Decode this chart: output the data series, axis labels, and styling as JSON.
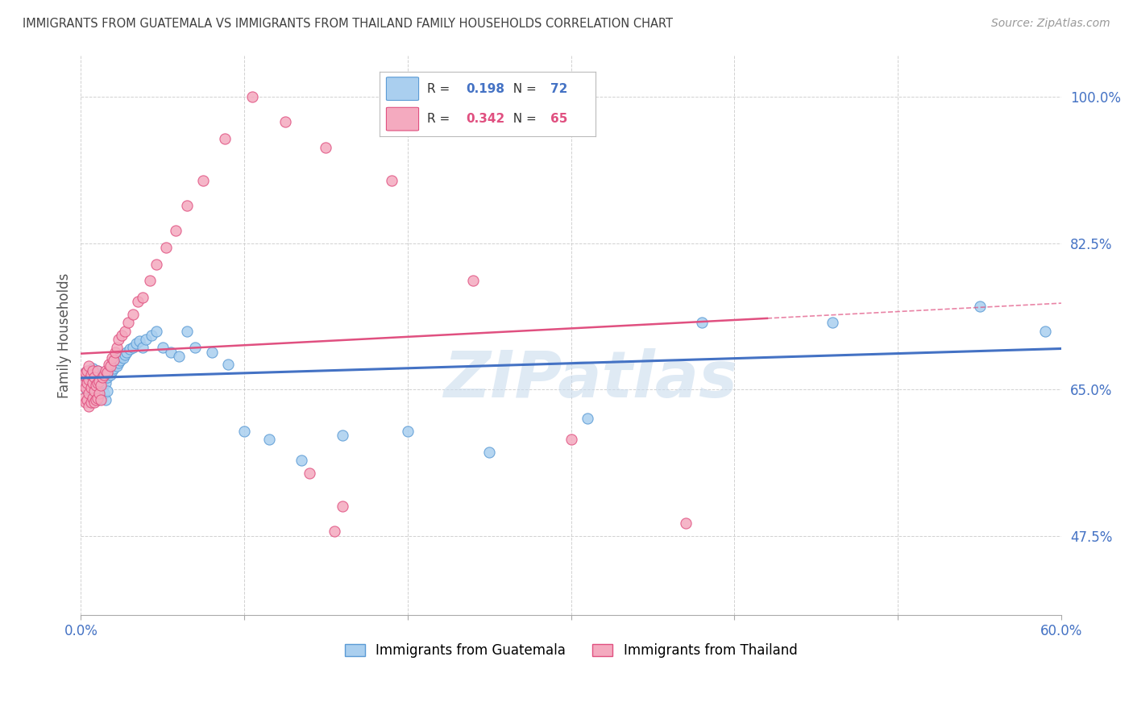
{
  "title": "IMMIGRANTS FROM GUATEMALA VS IMMIGRANTS FROM THAILAND FAMILY HOUSEHOLDS CORRELATION CHART",
  "source": "Source: ZipAtlas.com",
  "ylabel": "Family Households",
  "xlim": [
    0.0,
    0.6
  ],
  "ylim": [
    0.38,
    1.05
  ],
  "y_tick_vals": [
    0.475,
    0.65,
    0.825,
    1.0
  ],
  "y_tick_labels": [
    "47.5%",
    "65.0%",
    "82.5%",
    "100.0%"
  ],
  "x_tick_positions": [
    0.0,
    0.1,
    0.2,
    0.3,
    0.4,
    0.5,
    0.6
  ],
  "x_tick_labels": [
    "0.0%",
    "",
    "",
    "",
    "",
    "",
    "60.0%"
  ],
  "legend_blue_r": "0.198",
  "legend_blue_n": "72",
  "legend_pink_r": "0.342",
  "legend_pink_n": "65",
  "color_blue_fill": "#AACFEF",
  "color_blue_edge": "#5B9BD5",
  "color_pink_fill": "#F4AABF",
  "color_pink_edge": "#E05080",
  "color_blue_line": "#4472C4",
  "color_pink_line": "#E05080",
  "color_blue_text": "#4472C4",
  "color_pink_text": "#E05080",
  "color_title": "#404040",
  "color_grid": "#CCCCCC",
  "watermark": "ZIPatlas",
  "watermark_color": "#CADCEE",
  "background_color": "#FFFFFF",
  "blue_x": [
    0.002,
    0.003,
    0.003,
    0.004,
    0.004,
    0.005,
    0.005,
    0.005,
    0.006,
    0.006,
    0.006,
    0.007,
    0.007,
    0.007,
    0.008,
    0.008,
    0.008,
    0.009,
    0.009,
    0.01,
    0.01,
    0.01,
    0.011,
    0.011,
    0.012,
    0.012,
    0.013,
    0.013,
    0.014,
    0.014,
    0.015,
    0.015,
    0.016,
    0.016,
    0.017,
    0.018,
    0.019,
    0.02,
    0.021,
    0.022,
    0.023,
    0.024,
    0.025,
    0.026,
    0.027,
    0.028,
    0.03,
    0.032,
    0.034,
    0.036,
    0.038,
    0.04,
    0.043,
    0.046,
    0.05,
    0.055,
    0.06,
    0.065,
    0.07,
    0.08,
    0.09,
    0.1,
    0.115,
    0.135,
    0.16,
    0.2,
    0.25,
    0.31,
    0.38,
    0.46,
    0.55,
    0.59
  ],
  "blue_y": [
    0.66,
    0.655,
    0.67,
    0.648,
    0.665,
    0.64,
    0.658,
    0.672,
    0.635,
    0.65,
    0.668,
    0.642,
    0.66,
    0.675,
    0.638,
    0.655,
    0.67,
    0.645,
    0.662,
    0.638,
    0.655,
    0.672,
    0.648,
    0.665,
    0.64,
    0.66,
    0.65,
    0.668,
    0.645,
    0.662,
    0.638,
    0.658,
    0.648,
    0.665,
    0.67,
    0.668,
    0.672,
    0.675,
    0.68,
    0.678,
    0.682,
    0.685,
    0.69,
    0.688,
    0.692,
    0.695,
    0.698,
    0.7,
    0.705,
    0.708,
    0.7,
    0.71,
    0.715,
    0.72,
    0.7,
    0.695,
    0.69,
    0.72,
    0.7,
    0.695,
    0.68,
    0.6,
    0.59,
    0.565,
    0.595,
    0.6,
    0.575,
    0.615,
    0.73,
    0.73,
    0.75,
    0.72
  ],
  "pink_x": [
    0.001,
    0.002,
    0.002,
    0.003,
    0.003,
    0.003,
    0.004,
    0.004,
    0.004,
    0.005,
    0.005,
    0.005,
    0.005,
    0.006,
    0.006,
    0.006,
    0.007,
    0.007,
    0.007,
    0.008,
    0.008,
    0.008,
    0.009,
    0.009,
    0.01,
    0.01,
    0.01,
    0.011,
    0.011,
    0.012,
    0.012,
    0.013,
    0.014,
    0.015,
    0.016,
    0.017,
    0.018,
    0.019,
    0.02,
    0.021,
    0.022,
    0.023,
    0.025,
    0.027,
    0.029,
    0.032,
    0.035,
    0.038,
    0.042,
    0.046,
    0.052,
    0.058,
    0.065,
    0.075,
    0.088,
    0.105,
    0.125,
    0.15,
    0.19,
    0.24,
    0.3,
    0.37,
    0.14,
    0.155,
    0.16
  ],
  "pink_y": [
    0.655,
    0.64,
    0.668,
    0.635,
    0.652,
    0.67,
    0.638,
    0.658,
    0.672,
    0.63,
    0.645,
    0.662,
    0.678,
    0.635,
    0.652,
    0.668,
    0.64,
    0.658,
    0.672,
    0.635,
    0.648,
    0.665,
    0.638,
    0.655,
    0.64,
    0.658,
    0.672,
    0.645,
    0.66,
    0.638,
    0.655,
    0.665,
    0.668,
    0.672,
    0.67,
    0.68,
    0.678,
    0.688,
    0.685,
    0.695,
    0.7,
    0.71,
    0.715,
    0.72,
    0.73,
    0.74,
    0.755,
    0.76,
    0.78,
    0.8,
    0.82,
    0.84,
    0.87,
    0.9,
    0.95,
    1.0,
    0.97,
    0.94,
    0.9,
    0.78,
    0.59,
    0.49,
    0.55,
    0.48,
    0.51
  ]
}
